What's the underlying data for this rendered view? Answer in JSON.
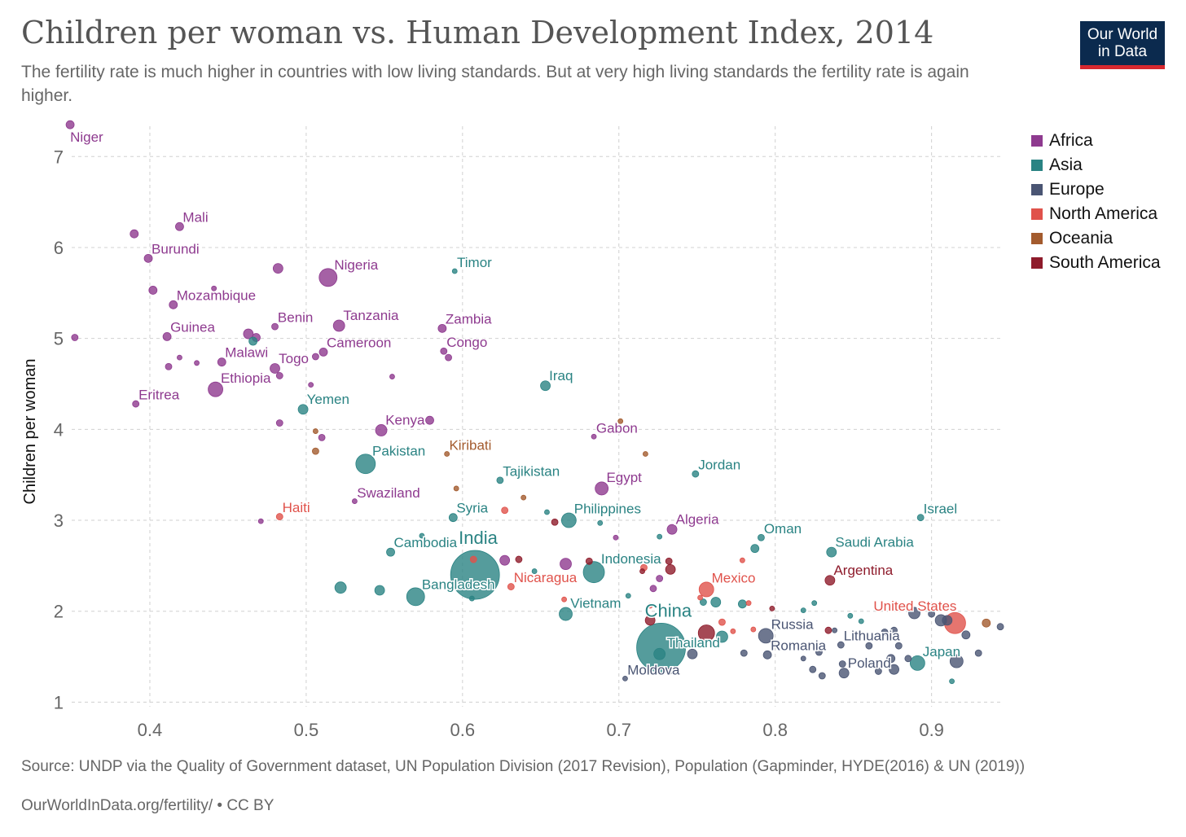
{
  "title": "Children per woman vs. Human Development Index, 2014",
  "subtitle": "The fertility rate is much higher in countries with low living standards. But at very high living standards the fertility rate is again higher.",
  "logo": {
    "line1": "Our World",
    "line2": "in Data"
  },
  "source": "Source: UNDP via the Quality of Government dataset, UN Population Division (2017 Revision), Population (Gapminder, HYDE(2016) & UN (2019))",
  "url": "OurWorldInData.org/fertility/ • CC BY",
  "legend": [
    {
      "name": "Africa",
      "color": "#8e3a8f"
    },
    {
      "name": "Asia",
      "color": "#2a8383"
    },
    {
      "name": "Europe",
      "color": "#4a5573"
    },
    {
      "name": "North America",
      "color": "#e0524b"
    },
    {
      "name": "Oceania",
      "color": "#a35b2e"
    },
    {
      "name": "South America",
      "color": "#8e1b2b"
    }
  ],
  "chart_data": {
    "type": "scatter",
    "title": "Children per woman vs. Human Development Index, 2014",
    "xlabel": "",
    "ylabel": "Children per woman",
    "xlim": [
      0.35,
      0.945
    ],
    "ylim": [
      0.95,
      7.45
    ],
    "xticks": [
      "0.4",
      "0.5",
      "0.6",
      "0.7",
      "0.8",
      "0.9"
    ],
    "yticks": [
      "1",
      "2",
      "3",
      "4",
      "5",
      "6",
      "7"
    ],
    "grid": true,
    "legend_position": "right",
    "points": [
      {
        "x": 0.349,
        "y": 7.35,
        "r": 5,
        "c": "Africa",
        "label": "Niger",
        "lp": "br"
      },
      {
        "x": 0.419,
        "y": 6.23,
        "r": 5,
        "c": "Africa",
        "label": "Mali",
        "lp": "tr"
      },
      {
        "x": 0.39,
        "y": 6.15,
        "r": 5,
        "c": "Africa"
      },
      {
        "x": 0.399,
        "y": 5.88,
        "r": 5,
        "c": "Africa",
        "label": "Burundi",
        "lp": "tr"
      },
      {
        "x": 0.482,
        "y": 5.77,
        "r": 6,
        "c": "Africa"
      },
      {
        "x": 0.514,
        "y": 5.67,
        "r": 11,
        "c": "Africa",
        "label": "Nigeria",
        "lp": "tr"
      },
      {
        "x": 0.595,
        "y": 5.74,
        "r": 3,
        "c": "Asia",
        "label": "Timor",
        "lp": "tr"
      },
      {
        "x": 0.402,
        "y": 5.53,
        "r": 5,
        "c": "Africa"
      },
      {
        "x": 0.415,
        "y": 5.37,
        "r": 5,
        "c": "Africa",
        "label": "Mozambique",
        "lp": "tr"
      },
      {
        "x": 0.441,
        "y": 5.55,
        "r": 3,
        "c": "Africa"
      },
      {
        "x": 0.48,
        "y": 5.13,
        "r": 4,
        "c": "Africa",
        "label": "Benin",
        "lp": "tr"
      },
      {
        "x": 0.521,
        "y": 5.14,
        "r": 7,
        "c": "Africa",
        "label": "Tanzania",
        "lp": "tr"
      },
      {
        "x": 0.587,
        "y": 5.11,
        "r": 5,
        "c": "Africa",
        "label": "Zambia",
        "lp": "tr"
      },
      {
        "x": 0.352,
        "y": 5.01,
        "r": 4,
        "c": "Africa"
      },
      {
        "x": 0.411,
        "y": 5.02,
        "r": 5,
        "c": "Africa",
        "label": "Guinea",
        "lp": "tr"
      },
      {
        "x": 0.463,
        "y": 5.05,
        "r": 6,
        "c": "Africa"
      },
      {
        "x": 0.468,
        "y": 5.01,
        "r": 5,
        "c": "Africa"
      },
      {
        "x": 0.466,
        "y": 4.97,
        "r": 5,
        "c": "Asia"
      },
      {
        "x": 0.511,
        "y": 4.85,
        "r": 5,
        "c": "Africa",
        "label": "Cameroon",
        "lp": "tr"
      },
      {
        "x": 0.506,
        "y": 4.8,
        "r": 4,
        "c": "Africa"
      },
      {
        "x": 0.588,
        "y": 4.86,
        "r": 4,
        "c": "Africa",
        "label": "Congo",
        "lp": "tr"
      },
      {
        "x": 0.591,
        "y": 4.79,
        "r": 4,
        "c": "Africa"
      },
      {
        "x": 0.419,
        "y": 4.79,
        "r": 3,
        "c": "Africa"
      },
      {
        "x": 0.412,
        "y": 4.69,
        "r": 4,
        "c": "Africa"
      },
      {
        "x": 0.43,
        "y": 4.73,
        "r": 3,
        "c": "Africa"
      },
      {
        "x": 0.446,
        "y": 4.74,
        "r": 5,
        "c": "Africa",
        "label": "Malawi",
        "lp": "tr"
      },
      {
        "x": 0.48,
        "y": 4.67,
        "r": 6,
        "c": "Africa",
        "label": "Togo",
        "lp": "tr"
      },
      {
        "x": 0.483,
        "y": 4.59,
        "r": 4,
        "c": "Africa"
      },
      {
        "x": 0.503,
        "y": 4.49,
        "r": 3,
        "c": "Africa"
      },
      {
        "x": 0.555,
        "y": 4.58,
        "r": 3,
        "c": "Africa"
      },
      {
        "x": 0.442,
        "y": 4.44,
        "r": 9,
        "c": "Africa",
        "label": "Ethiopia",
        "lp": "tr"
      },
      {
        "x": 0.653,
        "y": 4.48,
        "r": 6,
        "c": "Asia",
        "label": "Iraq",
        "lp": "tr"
      },
      {
        "x": 0.391,
        "y": 4.28,
        "r": 4,
        "c": "Africa",
        "label": "Eritrea",
        "lp": "tr"
      },
      {
        "x": 0.498,
        "y": 4.22,
        "r": 6,
        "c": "Asia",
        "label": "Yemen",
        "lp": "tr"
      },
      {
        "x": 0.483,
        "y": 4.07,
        "r": 4,
        "c": "Africa"
      },
      {
        "x": 0.548,
        "y": 3.99,
        "r": 7,
        "c": "Africa",
        "label": "Kenya",
        "lp": "tr"
      },
      {
        "x": 0.579,
        "y": 4.1,
        "r": 5,
        "c": "Africa"
      },
      {
        "x": 0.506,
        "y": 3.98,
        "r": 3,
        "c": "Oceania"
      },
      {
        "x": 0.51,
        "y": 3.91,
        "r": 4,
        "c": "Africa"
      },
      {
        "x": 0.506,
        "y": 3.76,
        "r": 4,
        "c": "Oceania"
      },
      {
        "x": 0.701,
        "y": 4.09,
        "r": 3,
        "c": "Oceania"
      },
      {
        "x": 0.684,
        "y": 3.92,
        "r": 3,
        "c": "Africa",
        "label": "Gabon",
        "lp": "tr"
      },
      {
        "x": 0.538,
        "y": 3.62,
        "r": 12,
        "c": "Asia",
        "label": "Pakistan",
        "lp": "tr"
      },
      {
        "x": 0.59,
        "y": 3.73,
        "r": 3,
        "c": "Oceania",
        "label": "Kiribati",
        "lp": "tr"
      },
      {
        "x": 0.717,
        "y": 3.73,
        "r": 3,
        "c": "Oceania"
      },
      {
        "x": 0.749,
        "y": 3.51,
        "r": 4,
        "c": "Asia",
        "label": "Jordan",
        "lp": "tr"
      },
      {
        "x": 0.624,
        "y": 3.44,
        "r": 4,
        "c": "Asia",
        "label": "Tajikistan",
        "lp": "tr"
      },
      {
        "x": 0.689,
        "y": 3.35,
        "r": 8,
        "c": "Africa",
        "label": "Egypt",
        "lp": "tr"
      },
      {
        "x": 0.596,
        "y": 3.35,
        "r": 3,
        "c": "Oceania"
      },
      {
        "x": 0.639,
        "y": 3.25,
        "r": 3,
        "c": "Oceania"
      },
      {
        "x": 0.531,
        "y": 3.21,
        "r": 3,
        "c": "Africa",
        "label": "Swaziland",
        "lp": "tr"
      },
      {
        "x": 0.483,
        "y": 3.04,
        "r": 4,
        "c": "North America",
        "label": "Haiti",
        "lp": "tr"
      },
      {
        "x": 0.471,
        "y": 2.99,
        "r": 3,
        "c": "Africa"
      },
      {
        "x": 0.594,
        "y": 3.03,
        "r": 5,
        "c": "Asia",
        "label": "Syria",
        "lp": "tr"
      },
      {
        "x": 0.627,
        "y": 3.11,
        "r": 4,
        "c": "North America"
      },
      {
        "x": 0.668,
        "y": 3.0,
        "r": 9,
        "c": "Asia",
        "label": "Philippines",
        "lp": "tr"
      },
      {
        "x": 0.654,
        "y": 3.09,
        "r": 3,
        "c": "Asia"
      },
      {
        "x": 0.659,
        "y": 2.98,
        "r": 4,
        "c": "South America"
      },
      {
        "x": 0.688,
        "y": 2.97,
        "r": 3,
        "c": "Asia"
      },
      {
        "x": 0.734,
        "y": 2.9,
        "r": 6,
        "c": "Africa",
        "label": "Algeria",
        "lp": "tr"
      },
      {
        "x": 0.893,
        "y": 3.03,
        "r": 4,
        "c": "Asia",
        "label": "Israel",
        "lp": "tr"
      },
      {
        "x": 0.791,
        "y": 2.81,
        "r": 4,
        "c": "Asia",
        "label": "Oman",
        "lp": "tr"
      },
      {
        "x": 0.787,
        "y": 2.69,
        "r": 5,
        "c": "Asia"
      },
      {
        "x": 0.726,
        "y": 2.82,
        "r": 3,
        "c": "Asia"
      },
      {
        "x": 0.698,
        "y": 2.81,
        "r": 3,
        "c": "Africa"
      },
      {
        "x": 0.836,
        "y": 2.65,
        "r": 6,
        "c": "Asia",
        "label": "Saudi Arabia",
        "lp": "tr"
      },
      {
        "x": 0.554,
        "y": 2.65,
        "r": 5,
        "c": "Asia",
        "label": "Cambodia",
        "lp": "tr"
      },
      {
        "x": 0.574,
        "y": 2.83,
        "r": 3,
        "c": "Asia"
      },
      {
        "x": 0.608,
        "y": 2.4,
        "r": 30,
        "c": "Asia",
        "label": "India",
        "lp": "tr",
        "big": true
      },
      {
        "x": 0.627,
        "y": 2.56,
        "r": 6,
        "c": "Africa"
      },
      {
        "x": 0.636,
        "y": 2.57,
        "r": 4,
        "c": "South America"
      },
      {
        "x": 0.607,
        "y": 2.57,
        "r": 4,
        "c": "North America"
      },
      {
        "x": 0.646,
        "y": 2.44,
        "r": 3,
        "c": "Asia"
      },
      {
        "x": 0.666,
        "y": 2.52,
        "r": 7,
        "c": "Africa"
      },
      {
        "x": 0.684,
        "y": 2.43,
        "r": 13,
        "c": "Asia",
        "label": "Indonesia",
        "lp": "tr"
      },
      {
        "x": 0.681,
        "y": 2.55,
        "r": 4,
        "c": "South America"
      },
      {
        "x": 0.732,
        "y": 2.55,
        "r": 4,
        "c": "South America"
      },
      {
        "x": 0.733,
        "y": 2.46,
        "r": 6,
        "c": "South America"
      },
      {
        "x": 0.716,
        "y": 2.48,
        "r": 4,
        "c": "North America"
      },
      {
        "x": 0.715,
        "y": 2.44,
        "r": 3,
        "c": "South America"
      },
      {
        "x": 0.726,
        "y": 2.36,
        "r": 4,
        "c": "Africa"
      },
      {
        "x": 0.722,
        "y": 2.25,
        "r": 4,
        "c": "Africa"
      },
      {
        "x": 0.835,
        "y": 2.34,
        "r": 6,
        "c": "South America",
        "label": "Argentina",
        "lp": "tr"
      },
      {
        "x": 0.522,
        "y": 2.26,
        "r": 7,
        "c": "Asia"
      },
      {
        "x": 0.547,
        "y": 2.23,
        "r": 6,
        "c": "Asia"
      },
      {
        "x": 0.57,
        "y": 2.16,
        "r": 11,
        "c": "Asia",
        "label": "Bangladesh",
        "lp": "tr"
      },
      {
        "x": 0.631,
        "y": 2.27,
        "r": 4,
        "c": "North America",
        "label": "Nicaragua",
        "lp": "tr"
      },
      {
        "x": 0.606,
        "y": 2.14,
        "r": 3,
        "c": "Asia"
      },
      {
        "x": 0.756,
        "y": 2.24,
        "r": 9,
        "c": "North America",
        "label": "Mexico",
        "lp": "tr"
      },
      {
        "x": 0.706,
        "y": 2.17,
        "r": 3,
        "c": "Asia"
      },
      {
        "x": 0.665,
        "y": 2.13,
        "r": 3,
        "c": "North America"
      },
      {
        "x": 0.666,
        "y": 1.97,
        "r": 8,
        "c": "Asia",
        "label": "Vietnam",
        "lp": "tr"
      },
      {
        "x": 0.752,
        "y": 2.15,
        "r": 3,
        "c": "North America"
      },
      {
        "x": 0.762,
        "y": 2.1,
        "r": 6,
        "c": "Asia"
      },
      {
        "x": 0.754,
        "y": 2.1,
        "r": 4,
        "c": "Asia"
      },
      {
        "x": 0.72,
        "y": 2.06,
        "r": 3,
        "c": "North America"
      },
      {
        "x": 0.766,
        "y": 1.88,
        "r": 4,
        "c": "North America"
      },
      {
        "x": 0.779,
        "y": 2.08,
        "r": 5,
        "c": "Asia"
      },
      {
        "x": 0.783,
        "y": 2.09,
        "r": 3,
        "c": "North America"
      },
      {
        "x": 0.798,
        "y": 2.03,
        "r": 3,
        "c": "South America"
      },
      {
        "x": 0.779,
        "y": 2.56,
        "r": 3,
        "c": "North America"
      },
      {
        "x": 0.818,
        "y": 2.01,
        "r": 3,
        "c": "Asia"
      },
      {
        "x": 0.825,
        "y": 2.09,
        "r": 3,
        "c": "Asia"
      },
      {
        "x": 0.848,
        "y": 1.95,
        "r": 3,
        "c": "Asia"
      },
      {
        "x": 0.855,
        "y": 1.89,
        "r": 3,
        "c": "Asia"
      },
      {
        "x": 0.727,
        "y": 1.6,
        "r": 30,
        "c": "Asia",
        "label": "China",
        "lp": "tr",
        "big": true
      },
      {
        "x": 0.726,
        "y": 1.53,
        "r": 7,
        "c": "Asia",
        "label": "Thailand",
        "lp": "r"
      },
      {
        "x": 0.72,
        "y": 1.9,
        "r": 6,
        "c": "South America"
      },
      {
        "x": 0.756,
        "y": 1.76,
        "r": 10,
        "c": "South America"
      },
      {
        "x": 0.766,
        "y": 1.72,
        "r": 7,
        "c": "Asia"
      },
      {
        "x": 0.773,
        "y": 1.78,
        "r": 3,
        "c": "North America"
      },
      {
        "x": 0.786,
        "y": 1.8,
        "r": 3,
        "c": "North America"
      },
      {
        "x": 0.794,
        "y": 1.73,
        "r": 9,
        "c": "Europe",
        "label": "Russia",
        "lp": "tr"
      },
      {
        "x": 0.795,
        "y": 1.52,
        "r": 5,
        "c": "Europe",
        "label": "Romania",
        "lp": "tr"
      },
      {
        "x": 0.747,
        "y": 1.53,
        "r": 6,
        "c": "Europe"
      },
      {
        "x": 0.78,
        "y": 1.54,
        "r": 4,
        "c": "Europe"
      },
      {
        "x": 0.732,
        "y": 1.34,
        "r": 4,
        "c": "Europe"
      },
      {
        "x": 0.704,
        "y": 1.26,
        "r": 3,
        "c": "Europe",
        "label": "Moldova",
        "lp": "tr"
      },
      {
        "x": 0.828,
        "y": 1.55,
        "r": 4,
        "c": "Europe"
      },
      {
        "x": 0.834,
        "y": 1.79,
        "r": 4,
        "c": "South America"
      },
      {
        "x": 0.838,
        "y": 1.79,
        "r": 3,
        "c": "Europe"
      },
      {
        "x": 0.842,
        "y": 1.63,
        "r": 4,
        "c": "Europe",
        "label": "Lithuania",
        "lp": "tr"
      },
      {
        "x": 0.843,
        "y": 1.42,
        "r": 4,
        "c": "Europe"
      },
      {
        "x": 0.844,
        "y": 1.32,
        "r": 6,
        "c": "Europe",
        "label": "Poland",
        "lp": "tr"
      },
      {
        "x": 0.818,
        "y": 1.48,
        "r": 3,
        "c": "Europe"
      },
      {
        "x": 0.824,
        "y": 1.36,
        "r": 4,
        "c": "Europe"
      },
      {
        "x": 0.83,
        "y": 1.29,
        "r": 4,
        "c": "Europe"
      },
      {
        "x": 0.86,
        "y": 1.62,
        "r": 4,
        "c": "Europe"
      },
      {
        "x": 0.864,
        "y": 1.42,
        "r": 4,
        "c": "Europe"
      },
      {
        "x": 0.866,
        "y": 1.34,
        "r": 4,
        "c": "Europe"
      },
      {
        "x": 0.87,
        "y": 1.77,
        "r": 4,
        "c": "Europe"
      },
      {
        "x": 0.876,
        "y": 1.79,
        "r": 4,
        "c": "Europe"
      },
      {
        "x": 0.879,
        "y": 1.62,
        "r": 4,
        "c": "Europe"
      },
      {
        "x": 0.874,
        "y": 1.48,
        "r": 5,
        "c": "Europe"
      },
      {
        "x": 0.876,
        "y": 1.36,
        "r": 6,
        "c": "Europe"
      },
      {
        "x": 0.885,
        "y": 1.48,
        "r": 4,
        "c": "Europe"
      },
      {
        "x": 0.889,
        "y": 1.98,
        "r": 7,
        "c": "Europe"
      },
      {
        "x": 0.891,
        "y": 1.43,
        "r": 9,
        "c": "Asia",
        "label": "Japan",
        "lp": "tr"
      },
      {
        "x": 0.9,
        "y": 1.97,
        "r": 4,
        "c": "Europe"
      },
      {
        "x": 0.906,
        "y": 1.9,
        "r": 7,
        "c": "Europe"
      },
      {
        "x": 0.91,
        "y": 1.9,
        "r": 6,
        "c": "Europe"
      },
      {
        "x": 0.913,
        "y": 1.23,
        "r": 3,
        "c": "Asia"
      },
      {
        "x": 0.915,
        "y": 1.87,
        "r": 13,
        "c": "North America",
        "label": "United States",
        "lp": "tl"
      },
      {
        "x": 0.916,
        "y": 1.45,
        "r": 8,
        "c": "Europe"
      },
      {
        "x": 0.922,
        "y": 1.74,
        "r": 5,
        "c": "Europe"
      },
      {
        "x": 0.93,
        "y": 1.54,
        "r": 4,
        "c": "Europe"
      },
      {
        "x": 0.935,
        "y": 1.87,
        "r": 5,
        "c": "Oceania"
      },
      {
        "x": 0.944,
        "y": 1.83,
        "r": 4,
        "c": "Europe"
      }
    ]
  }
}
